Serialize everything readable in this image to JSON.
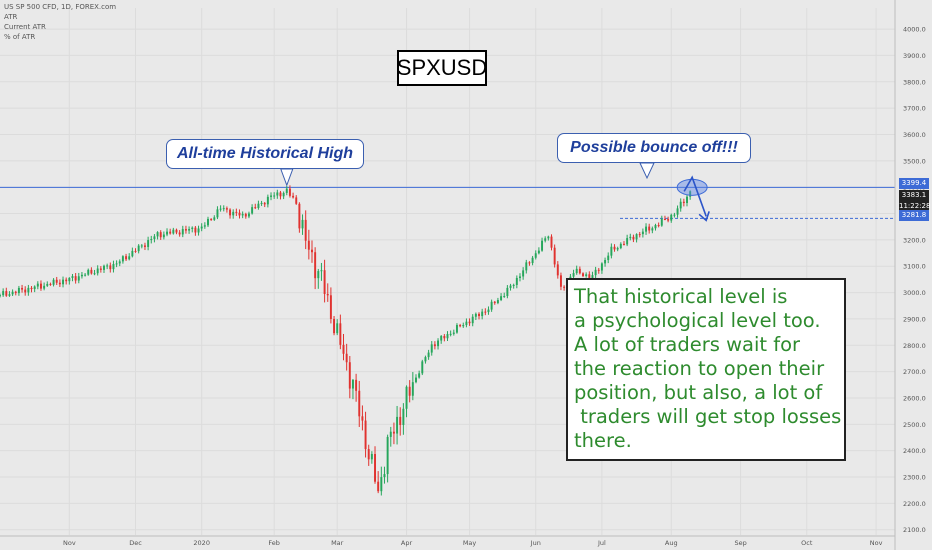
{
  "header": {
    "line1": "US SP 500 CFD, 1D, FOREX.com",
    "line2": "ATR",
    "line3": "Current ATR",
    "line4": "% of ATR"
  },
  "symbol_box": "SPXUSD",
  "callout_high": "All-time Historical High",
  "callout_bounce": "Possible bounce off!!!",
  "note_text": "That historical level is\na psychological level too.\nA lot of traders wait for\nthe reaction to open their\nposition, but also, a lot of\n traders will get stop losses\nthere.",
  "price_tags": {
    "resistance": "3399.4",
    "last": "3383.1",
    "timer": "11:22:28",
    "support": "3281.8"
  },
  "colors": {
    "up": "#26a65b",
    "down": "#e0322f",
    "resistance_line": "#3d6bd6",
    "note_text": "#2e8b2e",
    "callout_text": "#1f3f9c"
  },
  "chart_data": {
    "type": "candlestick",
    "symbol": "US SP 500 CFD",
    "timeframe": "1D",
    "y_axis": {
      "ticks": [
        2100,
        2200,
        2300,
        2400,
        2500,
        2600,
        2700,
        2800,
        2900,
        3000,
        3100,
        3200,
        3300,
        3400,
        3500,
        3600,
        3700,
        3800,
        3900,
        4000
      ],
      "tick_labels": [
        "2100.0",
        "2200.0",
        "2300.0",
        "2400.0",
        "2500.0",
        "2600.0",
        "2700.0",
        "2800.0",
        "2900.0",
        "3000.0",
        "3100.0",
        "3200.0",
        "3300.0",
        "3400.0",
        "3500.0",
        "3600.0",
        "3700.0",
        "3800.0",
        "3900.0",
        "4000.0"
      ],
      "range": [
        2080,
        4080
      ]
    },
    "x_axis": {
      "labels": [
        "Nov",
        "Dec",
        "2020",
        "Feb",
        "Mar",
        "Apr",
        "May",
        "Jun",
        "Jul",
        "Aug",
        "Sep",
        "Oct",
        "Nov"
      ],
      "label_day_index": [
        0,
        21,
        42,
        65,
        85,
        107,
        127,
        148,
        169,
        191,
        213,
        234,
        256
      ],
      "range_days": [
        -22,
        262
      ]
    },
    "levels": [
      {
        "label": "3399.4",
        "value": 3399.4,
        "style": "solid"
      },
      {
        "label": "3281.8",
        "value": 3281.8,
        "style": "dashed"
      }
    ],
    "anchors": [
      {
        "day": -22,
        "close": 2990
      },
      {
        "day": 0,
        "close": 3050
      },
      {
        "day": 15,
        "close": 3110
      },
      {
        "day": 28,
        "close": 3220
      },
      {
        "day": 42,
        "close": 3245
      },
      {
        "day": 48,
        "close": 3320
      },
      {
        "day": 55,
        "close": 3290
      },
      {
        "day": 64,
        "close": 3365
      },
      {
        "day": 69,
        "close": 3385
      },
      {
        "day": 72,
        "close": 3340
      },
      {
        "day": 75,
        "close": 3190
      },
      {
        "day": 80,
        "close": 3050
      },
      {
        "day": 85,
        "close": 2840
      },
      {
        "day": 90,
        "close": 2650
      },
      {
        "day": 94,
        "close": 2440
      },
      {
        "day": 98,
        "close": 2240
      },
      {
        "day": 101,
        "close": 2420
      },
      {
        "day": 104,
        "close": 2510
      },
      {
        "day": 110,
        "close": 2680
      },
      {
        "day": 115,
        "close": 2800
      },
      {
        "day": 125,
        "close": 2880
      },
      {
        "day": 133,
        "close": 2940
      },
      {
        "day": 140,
        "close": 3020
      },
      {
        "day": 148,
        "close": 3150
      },
      {
        "day": 152,
        "close": 3220
      },
      {
        "day": 156,
        "close": 3010
      },
      {
        "day": 160,
        "close": 3080
      },
      {
        "day": 166,
        "close": 3060
      },
      {
        "day": 172,
        "close": 3160
      },
      {
        "day": 180,
        "close": 3220
      },
      {
        "day": 187,
        "close": 3260
      },
      {
        "day": 192,
        "close": 3300
      },
      {
        "day": 197,
        "close": 3383
      }
    ]
  }
}
